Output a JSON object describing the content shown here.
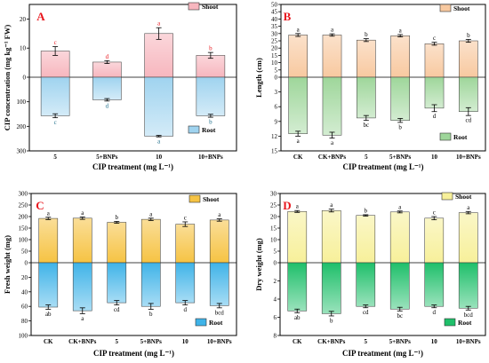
{
  "chart_data": [
    {
      "panel": "A",
      "type": "bar",
      "categories": [
        "5",
        "5+BNPs",
        "10",
        "10+BNPs"
      ],
      "series": [
        {
          "name": "Shoot",
          "values": [
            9,
            5.2,
            15,
            7.5
          ],
          "errors": [
            1.5,
            0.5,
            2,
            1
          ],
          "letters": [
            "c",
            "d",
            "a",
            "b"
          ]
        },
        {
          "name": "Root",
          "values": [
            157,
            92,
            240,
            157
          ],
          "errors": [
            8,
            5,
            3,
            6
          ],
          "letters": [
            "c",
            "d",
            "a",
            "b"
          ]
        }
      ],
      "xlabel": "CIP treatment (mg L⁻¹)",
      "ylabel": "CIP concentration (mg kg⁻¹ FW)",
      "shoot_ticks": [
        "0",
        "10",
        "20"
      ],
      "root_ticks": [
        "100",
        "200",
        "300"
      ],
      "shoot_range": [
        0,
        25
      ],
      "root_range": [
        0,
        300
      ],
      "letter_color_shoot": "#e8151c",
      "letter_color_root": "#1f6f8b",
      "shoot_color": "#f7b6be",
      "root_color": "#9fd3ef"
    },
    {
      "panel": "B",
      "type": "bar",
      "categories": [
        "CK",
        "CK+BNPs",
        "5",
        "5+BNPs",
        "10",
        "10+BNPs"
      ],
      "series": [
        {
          "name": "Shoot",
          "values": [
            29,
            29,
            25.5,
            28.5,
            23,
            25
          ],
          "errors": [
            1,
            0.8,
            1,
            0.8,
            1,
            1
          ],
          "letters": [
            "a",
            "a",
            "b",
            "a",
            "c",
            "b"
          ]
        },
        {
          "name": "Root",
          "values": [
            11.5,
            11.8,
            8.3,
            8.8,
            6.3,
            7
          ],
          "errors": [
            0.5,
            0.6,
            0.5,
            0.4,
            0.7,
            0.8
          ],
          "letters": [
            "a",
            "a",
            "bc",
            "b",
            "d",
            "cd"
          ]
        }
      ],
      "xlabel": "CIP treatment (mg L⁻¹)",
      "ylabel": "Length (cm)",
      "shoot_ticks": [
        "0",
        "5",
        "10",
        "15",
        "20",
        "25",
        "30",
        "35",
        "40",
        "45",
        "50"
      ],
      "root_ticks": [
        "3",
        "6",
        "9",
        "12",
        "15"
      ],
      "shoot_range": [
        0,
        50
      ],
      "root_range": [
        0,
        15
      ],
      "letter_color_shoot": "#000000",
      "letter_color_root": "#000000",
      "shoot_color": "#f8c9a0",
      "root_color": "#9ed69a"
    },
    {
      "panel": "C",
      "type": "bar",
      "categories": [
        "CK",
        "CK+BNPs",
        "5",
        "5+BNPs",
        "10",
        "10+BNPs"
      ],
      "series": [
        {
          "name": "Shoot",
          "values": [
            192,
            193,
            175,
            188,
            167,
            185
          ],
          "errors": [
            5,
            5,
            4,
            5,
            10,
            5
          ],
          "letters": [
            "a",
            "a",
            "b",
            "a",
            "c",
            "a"
          ]
        },
        {
          "name": "Root",
          "values": [
            61,
            66,
            55,
            60,
            55,
            59
          ],
          "errors": [
            3,
            4,
            3,
            4,
            3,
            3
          ],
          "letters": [
            "ab",
            "a",
            "cd",
            "b",
            "d",
            "bcd"
          ]
        }
      ],
      "xlabel": "CIP treatment (mg L⁻¹)",
      "ylabel": "Fresh weight (mg)",
      "shoot_ticks": [
        "0",
        "50",
        "100",
        "150",
        "200",
        "250",
        "300"
      ],
      "root_ticks": [
        "20",
        "40",
        "60",
        "80",
        "100"
      ],
      "shoot_range": [
        0,
        300
      ],
      "root_range": [
        0,
        100
      ],
      "letter_color_shoot": "#000000",
      "letter_color_root": "#000000",
      "shoot_color": "#f6c343",
      "root_color": "#3fb3e8"
    },
    {
      "panel": "D",
      "type": "bar",
      "categories": [
        "CK",
        "CK+BNPs",
        "5",
        "5+BNPs",
        "10",
        "10+BNPs"
      ],
      "series": [
        {
          "name": "Shoot",
          "values": [
            22.2,
            22.6,
            20.5,
            22,
            19.3,
            21.7
          ],
          "errors": [
            0.4,
            0.6,
            0.3,
            0.4,
            0.7,
            0.5
          ],
          "letters": [
            "a",
            "a",
            "b",
            "a",
            "c",
            "a"
          ]
        },
        {
          "name": "Root",
          "values": [
            5.3,
            5.6,
            4.8,
            5.1,
            4.8,
            5
          ],
          "errors": [
            0.2,
            0.25,
            0.15,
            0.2,
            0.15,
            0.2
          ],
          "letters": [
            "ab",
            "b",
            "cd",
            "bc",
            "d",
            "bcd"
          ]
        }
      ],
      "xlabel": "CIP treatment (mg L⁻¹)",
      "ylabel": "Dry weight (mg)",
      "shoot_ticks": [
        "0",
        "5",
        "10",
        "15",
        "20",
        "25",
        "30"
      ],
      "root_ticks": [
        "2",
        "4",
        "6",
        "8"
      ],
      "shoot_range": [
        0,
        30
      ],
      "root_range": [
        0,
        8
      ],
      "letter_color_shoot": "#000000",
      "letter_color_root": "#000000",
      "shoot_color": "#f7f09a",
      "root_color": "#1fbf6a"
    }
  ]
}
